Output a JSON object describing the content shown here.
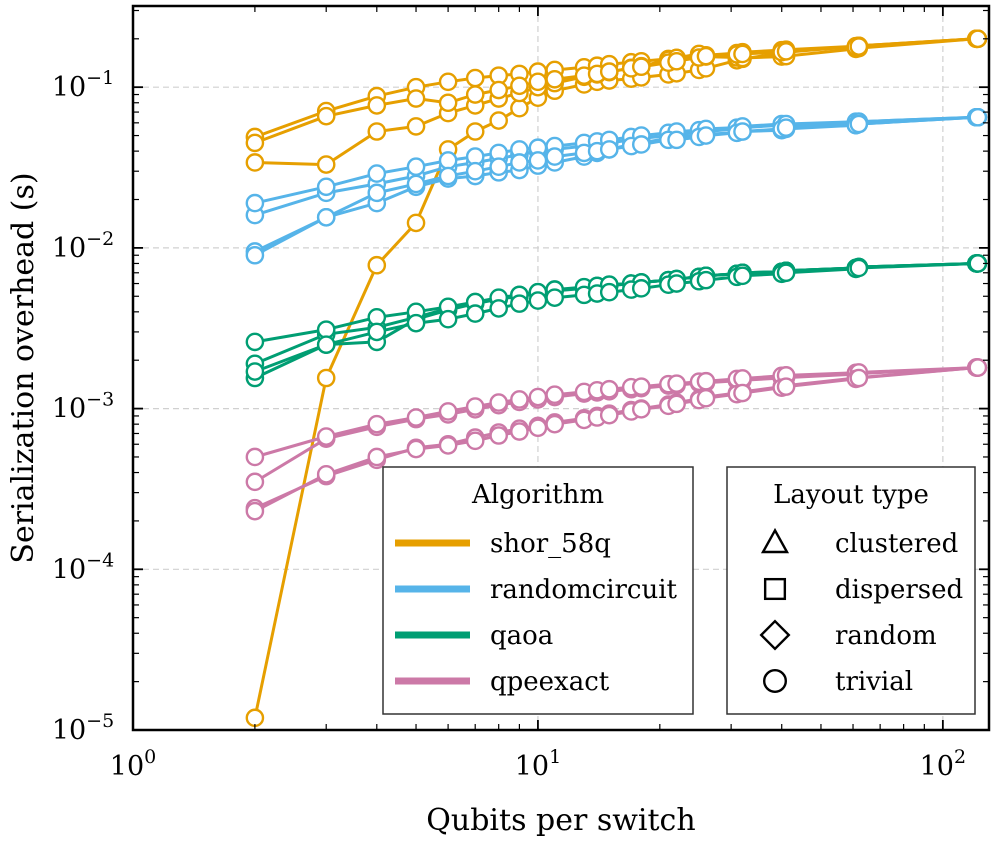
{
  "chart_data": {
    "type": "line",
    "xscale": "log",
    "yscale": "log",
    "xlabel": "Qubits per switch",
    "ylabel": "Serialization overhead (s)",
    "xlim": [
      1,
      130
    ],
    "ylim": [
      1e-05,
      0.32
    ],
    "grid": true,
    "x_ticks": [
      {
        "value": 1,
        "base": "10",
        "exp": "0"
      },
      {
        "value": 10,
        "base": "10",
        "exp": "1"
      },
      {
        "value": 100,
        "base": "10",
        "exp": "2"
      }
    ],
    "y_ticks": [
      {
        "value": 1e-05,
        "base": "10",
        "exp": "−5"
      },
      {
        "value": 0.0001,
        "base": "10",
        "exp": "−4"
      },
      {
        "value": 0.001,
        "base": "10",
        "exp": "−3"
      },
      {
        "value": 0.01,
        "base": "10",
        "exp": "−2"
      },
      {
        "value": 0.1,
        "base": "10",
        "exp": "−1"
      }
    ],
    "legend_algorithm": {
      "title": "Algorithm",
      "position": "bottom-center",
      "entries": [
        {
          "label": "shor_58q",
          "color": "#E69F00"
        },
        {
          "label": "randomcircuit",
          "color": "#56B4E9"
        },
        {
          "label": "qaoa",
          "color": "#009E73"
        },
        {
          "label": "qpeexact",
          "color": "#CC79A7"
        }
      ]
    },
    "legend_layout": {
      "title": "Layout type",
      "position": "bottom-right",
      "entries": [
        {
          "label": "clustered",
          "marker": "triangle"
        },
        {
          "label": "dispersed",
          "marker": "square"
        },
        {
          "label": "random",
          "marker": "diamond"
        },
        {
          "label": "trivial",
          "marker": "circle"
        }
      ]
    },
    "x": [
      2,
      3,
      4,
      5,
      6,
      7,
      8,
      9,
      10,
      11,
      13,
      14,
      15,
      17,
      18,
      21,
      22,
      25,
      26,
      31,
      32,
      40,
      41,
      61,
      62,
      121,
      122
    ],
    "series": [
      {
        "name": "shor_58q",
        "layout": "clustered",
        "color": "#E69F00",
        "y": [
          0.049,
          0.071,
          0.088,
          0.1,
          0.108,
          0.114,
          0.118,
          0.121,
          0.125,
          0.128,
          0.133,
          0.136,
          0.139,
          0.143,
          0.145,
          0.15,
          0.152,
          0.156,
          0.158,
          0.163,
          0.165,
          0.17,
          0.171,
          0.18,
          0.181,
          0.2,
          0.2
        ]
      },
      {
        "name": "shor_58q",
        "layout": "dispersed",
        "color": "#E69F00",
        "y": [
          1.19e-05,
          0.00155,
          0.0078,
          0.0143,
          0.041,
          0.053,
          0.062,
          0.074,
          0.086,
          0.095,
          0.104,
          0.108,
          0.11,
          0.113,
          0.115,
          0.12,
          0.122,
          0.128,
          0.131,
          0.147,
          0.15,
          0.163,
          0.165,
          0.18,
          0.181,
          0.2,
          0.2
        ]
      },
      {
        "name": "shor_58q",
        "layout": "random",
        "color": "#E69F00",
        "y": [
          0.034,
          0.033,
          0.053,
          0.057,
          0.069,
          0.077,
          0.085,
          0.092,
          0.1,
          0.106,
          0.116,
          0.12,
          0.124,
          0.132,
          0.135,
          0.148,
          0.152,
          0.161,
          0.155,
          0.153,
          0.152,
          0.155,
          0.156,
          0.173,
          0.175,
          0.2,
          0.2
        ]
      },
      {
        "name": "shor_58q",
        "layout": "trivial",
        "color": "#E69F00",
        "y": [
          0.045,
          0.066,
          0.077,
          0.085,
          0.08,
          0.09,
          0.096,
          0.102,
          0.108,
          0.112,
          0.118,
          0.121,
          0.125,
          0.131,
          0.134,
          0.142,
          0.145,
          0.153,
          0.156,
          0.16,
          0.161,
          0.165,
          0.167,
          0.178,
          0.179,
          0.2,
          0.2
        ]
      },
      {
        "name": "randomcircuit",
        "layout": "clustered",
        "color": "#56B4E9",
        "y": [
          0.0095,
          0.0155,
          0.019,
          0.024,
          0.027,
          0.028,
          0.0295,
          0.0305,
          0.0325,
          0.034,
          0.037,
          0.039,
          0.041,
          0.044,
          0.045,
          0.048,
          0.049,
          0.05,
          0.051,
          0.052,
          0.053,
          0.054,
          0.055,
          0.058,
          0.059,
          0.065,
          0.065
        ]
      },
      {
        "name": "randomcircuit",
        "layout": "dispersed",
        "color": "#56B4E9",
        "y": [
          0.016,
          0.022,
          0.025,
          0.028,
          0.032,
          0.034,
          0.036,
          0.038,
          0.04,
          0.041,
          0.043,
          0.044,
          0.045,
          0.047,
          0.048,
          0.05,
          0.051,
          0.052,
          0.053,
          0.055,
          0.056,
          0.058,
          0.058,
          0.06,
          0.061,
          0.065,
          0.065
        ]
      },
      {
        "name": "randomcircuit",
        "layout": "random",
        "color": "#56B4E9",
        "y": [
          0.019,
          0.024,
          0.029,
          0.032,
          0.035,
          0.037,
          0.039,
          0.041,
          0.042,
          0.043,
          0.045,
          0.046,
          0.047,
          0.049,
          0.05,
          0.052,
          0.053,
          0.054,
          0.055,
          0.056,
          0.057,
          0.059,
          0.059,
          0.061,
          0.061,
          0.065,
          0.065
        ]
      },
      {
        "name": "randomcircuit",
        "layout": "trivial",
        "color": "#56B4E9",
        "y": [
          0.009,
          0.0155,
          0.022,
          0.025,
          0.028,
          0.03,
          0.032,
          0.034,
          0.035,
          0.037,
          0.039,
          0.04,
          0.041,
          0.043,
          0.044,
          0.047,
          0.047,
          0.049,
          0.05,
          0.052,
          0.053,
          0.055,
          0.056,
          0.058,
          0.059,
          0.065,
          0.065
        ]
      },
      {
        "name": "qaoa",
        "layout": "clustered",
        "color": "#009E73",
        "y": [
          0.00155,
          0.0025,
          0.0026,
          0.0036,
          0.0041,
          0.0045,
          0.0048,
          0.005,
          0.0052,
          0.0054,
          0.0056,
          0.0057,
          0.0058,
          0.006,
          0.0061,
          0.0063,
          0.0064,
          0.0066,
          0.0067,
          0.0069,
          0.007,
          0.0071,
          0.0072,
          0.0075,
          0.0076,
          0.008,
          0.008
        ]
      },
      {
        "name": "qaoa",
        "layout": "dispersed",
        "color": "#009E73",
        "y": [
          0.0019,
          0.0029,
          0.0032,
          0.0037,
          0.0042,
          0.0046,
          0.0048,
          0.0051,
          0.0053,
          0.0055,
          0.0056,
          0.0058,
          0.0059,
          0.006,
          0.0061,
          0.0063,
          0.0064,
          0.0066,
          0.0067,
          0.0069,
          0.007,
          0.0071,
          0.0072,
          0.0075,
          0.0076,
          0.008,
          0.008
        ]
      },
      {
        "name": "qaoa",
        "layout": "random",
        "color": "#009E73",
        "y": [
          0.0026,
          0.0031,
          0.0037,
          0.004,
          0.0043,
          0.0046,
          0.0049,
          0.0051,
          0.0053,
          0.0055,
          0.0057,
          0.0058,
          0.0059,
          0.006,
          0.0061,
          0.0063,
          0.0064,
          0.0066,
          0.0067,
          0.0069,
          0.007,
          0.0071,
          0.0072,
          0.0075,
          0.0076,
          0.008,
          0.008
        ]
      },
      {
        "name": "qaoa",
        "layout": "trivial",
        "color": "#009E73",
        "y": [
          0.0017,
          0.0025,
          0.003,
          0.0034,
          0.0036,
          0.0039,
          0.0042,
          0.0045,
          0.0047,
          0.0049,
          0.0051,
          0.0052,
          0.0053,
          0.0055,
          0.0056,
          0.0059,
          0.006,
          0.0062,
          0.0063,
          0.0066,
          0.0067,
          0.0069,
          0.007,
          0.0074,
          0.0075,
          0.008,
          0.008
        ]
      },
      {
        "name": "qpeexact",
        "layout": "clustered",
        "color": "#CC79A7",
        "y": [
          0.00024,
          0.00038,
          0.00048,
          0.00057,
          0.0006,
          0.00066,
          0.00071,
          0.00075,
          0.00078,
          0.00082,
          0.00087,
          0.0009,
          0.00093,
          0.00098,
          0.001,
          0.00106,
          0.00109,
          0.00115,
          0.00118,
          0.00125,
          0.00127,
          0.00137,
          0.00139,
          0.00155,
          0.00156,
          0.0018,
          0.0018
        ]
      },
      {
        "name": "qpeexact",
        "layout": "dispersed",
        "color": "#CC79A7",
        "y": [
          0.00035,
          0.00065,
          0.00077,
          0.00086,
          0.00092,
          0.00099,
          0.00105,
          0.0011,
          0.00114,
          0.00118,
          0.00124,
          0.00126,
          0.00128,
          0.00132,
          0.00134,
          0.00139,
          0.0014,
          0.00144,
          0.00145,
          0.00149,
          0.0015,
          0.00155,
          0.00156,
          0.00164,
          0.00165,
          0.0018,
          0.0018
        ]
      },
      {
        "name": "qpeexact",
        "layout": "random",
        "color": "#CC79A7",
        "y": [
          0.0005,
          0.00067,
          0.0008,
          0.00088,
          0.00096,
          0.00103,
          0.00109,
          0.00114,
          0.00118,
          0.00122,
          0.00127,
          0.0013,
          0.00132,
          0.00136,
          0.00137,
          0.00142,
          0.00143,
          0.00147,
          0.00148,
          0.00153,
          0.00154,
          0.0016,
          0.00161,
          0.00167,
          0.00168,
          0.0018,
          0.0018
        ]
      },
      {
        "name": "qpeexact",
        "layout": "trivial",
        "color": "#CC79A7",
        "y": [
          0.00023,
          0.00039,
          0.0005,
          0.00056,
          0.00059,
          0.00063,
          0.00068,
          0.00072,
          0.00076,
          0.0008,
          0.00085,
          0.00088,
          0.00091,
          0.00096,
          0.00099,
          0.00104,
          0.00107,
          0.00113,
          0.00116,
          0.00123,
          0.00125,
          0.00135,
          0.00137,
          0.00153,
          0.00155,
          0.0018,
          0.0018
        ]
      }
    ]
  }
}
